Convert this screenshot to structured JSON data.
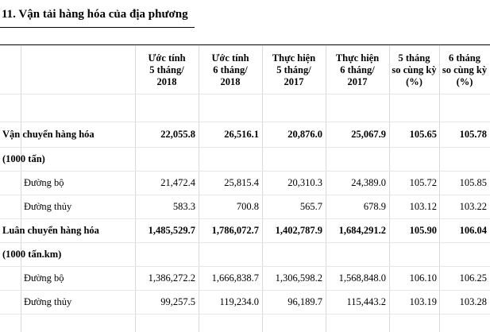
{
  "title": "11. Vận tải hàng hóa của địa phương",
  "headers": [
    [
      "Ước tính",
      "5 tháng/",
      "2018"
    ],
    [
      "Ước tính",
      "6 tháng/",
      "2018"
    ],
    [
      "Thực hiện",
      "5 tháng/",
      "2017"
    ],
    [
      "Thực hiện",
      "6 tháng/",
      "2017"
    ],
    [
      "5 tháng",
      "so cùng kỳ",
      "(%)"
    ],
    [
      "6 tháng",
      "so cùng kỳ",
      "(%)"
    ]
  ],
  "rows": [
    {
      "label": "Vận chuyển hàng hóa",
      "values": [
        "22,055.8",
        "26,516.1",
        "20,876.0",
        "25,067.9",
        "105.65",
        "105.78"
      ]
    },
    {
      "label": "(1000 tấn)",
      "values": []
    },
    {
      "label": "Đường bộ",
      "values": [
        "21,472.4",
        "25,815.4",
        "20,310.3",
        "24,389.0",
        "105.72",
        "105.85"
      ]
    },
    {
      "label": "Đường thủy",
      "values": [
        "583.3",
        "700.8",
        "565.7",
        "678.9",
        "103.12",
        "103.22"
      ]
    },
    {
      "label": "Luân chuyển hàng hóa",
      "values": [
        "1,485,529.7",
        "1,786,072.7",
        "1,402,787.9",
        "1,684,291.2",
        "105.90",
        "106.04"
      ]
    },
    {
      "label": "(1000 tấn.km)",
      "values": []
    },
    {
      "label": "Đường bộ",
      "values": [
        "1,386,272.2",
        "1,666,838.7",
        "1,306,598.2",
        "1,568,848.0",
        "106.10",
        "106.25"
      ]
    },
    {
      "label": "Đường thủy",
      "values": [
        "99,257.5",
        "119,234.0",
        "96,189.7",
        "115,443.2",
        "103.19",
        "103.28"
      ]
    }
  ]
}
